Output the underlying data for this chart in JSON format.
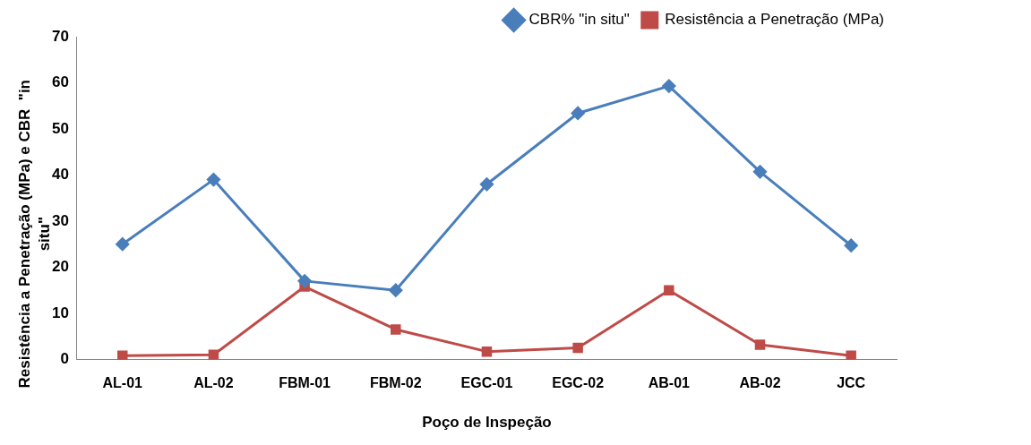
{
  "chart_data": {
    "type": "line",
    "xlabel": "Poço de Inspeção",
    "ylabel": "Resistência a Penetração (MPa) e CBR  \"in situ\"",
    "categories": [
      "AL-01",
      "AL-02",
      "FBM-01",
      "FBM-02",
      "EGC-01",
      "EGC-02",
      "AB-01",
      "AB-02",
      "JCC"
    ],
    "series": [
      {
        "name": "CBR% \"in situ\"",
        "color": "#4a7ebb",
        "marker": "diamond",
        "values": [
          25,
          39,
          17,
          15,
          38,
          53.4,
          59.3,
          40.7,
          24.7
        ]
      },
      {
        "name": "Resistência a Penetração (MPa)",
        "color": "#be4b48",
        "marker": "square",
        "values": [
          0.8,
          1,
          15.8,
          6.5,
          1.7,
          2.5,
          15,
          3.2,
          0.8
        ]
      }
    ],
    "ylim": [
      0,
      70
    ],
    "yticks": [
      0,
      10,
      20,
      30,
      40,
      50,
      60,
      70
    ],
    "grid": false,
    "legend": "top right",
    "line_style": "solid"
  }
}
